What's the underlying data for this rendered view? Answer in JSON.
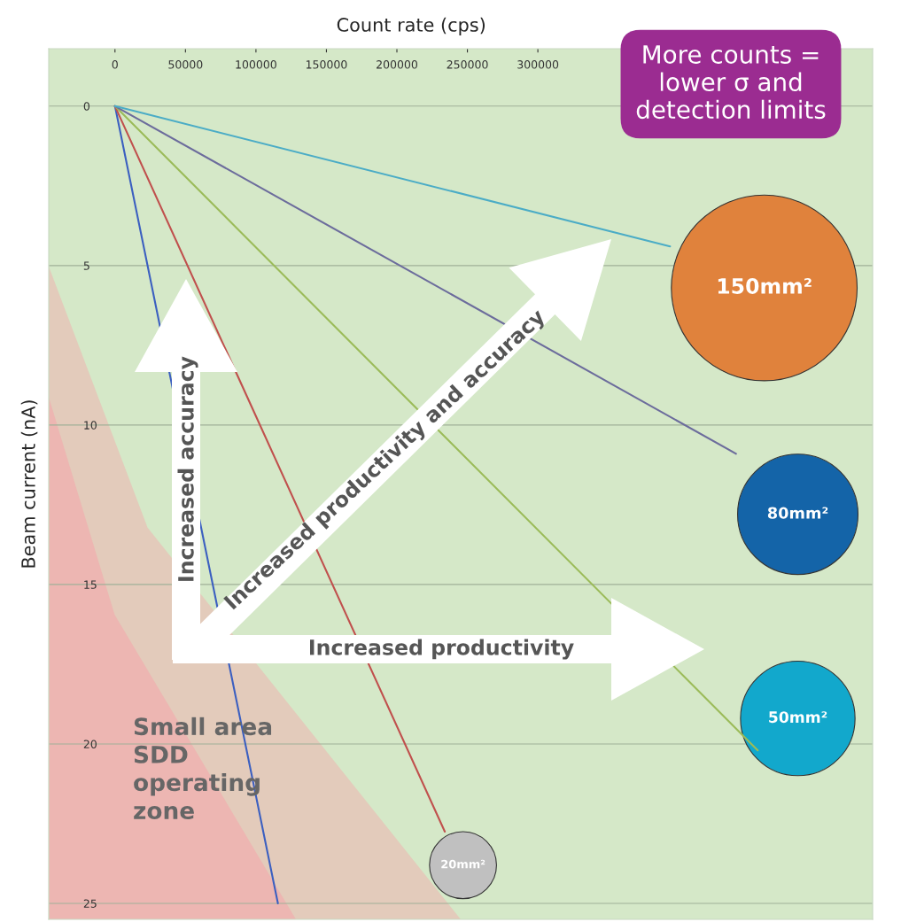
{
  "chart_data": {
    "type": "line",
    "xlabel": "Count rate (cps)",
    "ylabel": "Beam current (nA)",
    "xlim": [
      -47000,
      537500
    ],
    "ylim": [
      25.5,
      -1.8
    ],
    "xticks": [
      0,
      50000,
      100000,
      150000,
      200000,
      250000,
      300000
    ],
    "yticks": [
      0,
      5,
      10,
      15,
      20,
      25
    ],
    "grid": "y",
    "line_style": "solid",
    "series": [
      {
        "color": "#3b5fc0",
        "x": [
          0,
          115600
        ],
        "values": [
          0,
          25
        ]
      },
      {
        "color": "#c0504d",
        "x": [
          0,
          234000
        ],
        "values": [
          0,
          22.75
        ]
      },
      {
        "color": "#9bbb59",
        "x": [
          0,
          456000
        ],
        "values": [
          0,
          20.2
        ]
      },
      {
        "color": "#6c6c9c",
        "x": [
          0,
          440600
        ],
        "values": [
          0,
          10.9
        ]
      },
      {
        "color": "#4bacc6",
        "x": [
          0,
          393800
        ],
        "values": [
          0,
          4.4
        ]
      },
      {
        "type": "bubble",
        "x": [
          246900,
          484400,
          484400,
          460600
        ],
        "values": [
          23.8,
          19.2,
          12.8,
          5.7
        ],
        "sizes": [
          0.13,
          0.38,
          0.42,
          1
        ],
        "colors": [
          "#c0c0c0",
          "#12a8cc",
          "#1464a8",
          "#e0823c"
        ]
      }
    ],
    "annotations": [
      "Increased accuracy",
      "Increased productivity and accuracy",
      "Increased productivity",
      "Small area\nSDD\noperating\nzone",
      "More counts =\nlower σ and\ndetection limits",
      {
        "text": "20mm²",
        "x": 246900,
        "y": 23.8
      },
      {
        "text": "50mm²",
        "x": 484400,
        "y": 19.2
      },
      {
        "text": "80mm²",
        "x": 484400,
        "y": 12.8
      },
      {
        "text": "150mm²",
        "x": 460600,
        "y": 5.7
      }
    ]
  }
}
